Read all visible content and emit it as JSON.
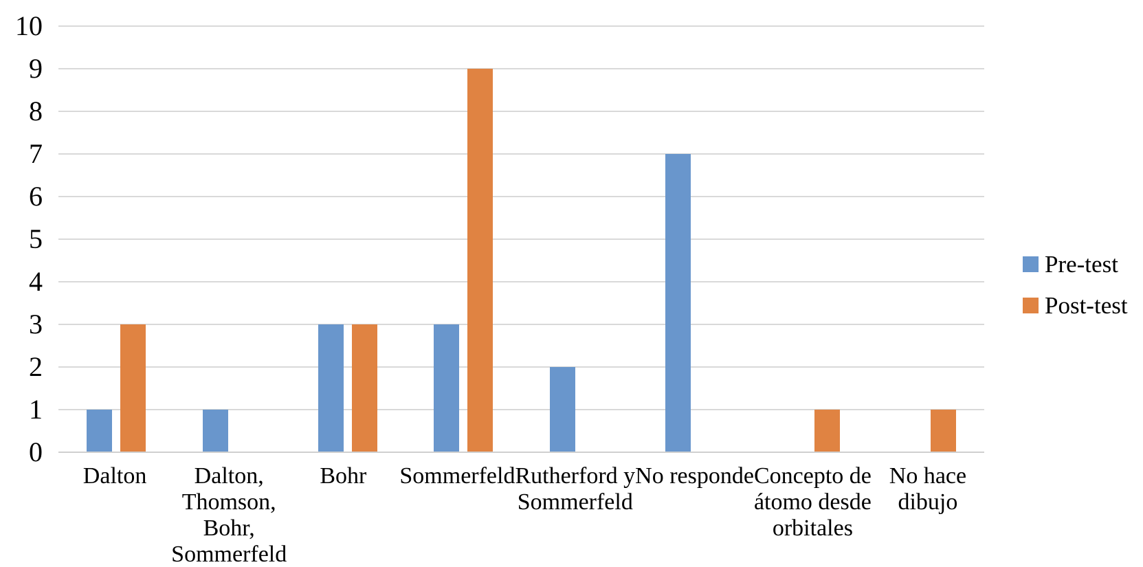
{
  "chart_data": {
    "type": "bar",
    "title": "",
    "xlabel": "",
    "ylabel": "",
    "categories": [
      "Dalton",
      "Dalton, Thomson, Bohr, Sommerfeld",
      "Bohr",
      "Sommerfeld",
      "Rutherford y Sommerfeld",
      "No responde",
      "Concepto de átomo desde orbitales",
      "No hace dibujo"
    ],
    "category_label_lines": [
      [
        "Dalton"
      ],
      [
        "Dalton,",
        "Thomson,",
        "Bohr,",
        "Sommerfeld"
      ],
      [
        "Bohr"
      ],
      [
        "Sommerfeld"
      ],
      [
        "Rutherford y",
        "Sommerfeld"
      ],
      [
        "No responde"
      ],
      [
        "Concepto de",
        "átomo desde",
        "orbitales"
      ],
      [
        "No hace",
        "dibujo"
      ]
    ],
    "series": [
      {
        "name": "Pre-test",
        "color": "#6996cc",
        "values": [
          1,
          1,
          3,
          3,
          2,
          7,
          0,
          0
        ]
      },
      {
        "name": "Post-test",
        "color": "#e08342",
        "values": [
          3,
          0,
          3,
          9,
          0,
          0,
          1,
          1
        ]
      }
    ],
    "ylim": [
      0,
      10
    ],
    "yticks": [
      0,
      1,
      2,
      3,
      4,
      5,
      6,
      7,
      8,
      9,
      10
    ],
    "grid": true,
    "gridline_color": "#d9d9d9",
    "legend_position": "right",
    "background": "#ffffff",
    "text_color": "#000000"
  }
}
